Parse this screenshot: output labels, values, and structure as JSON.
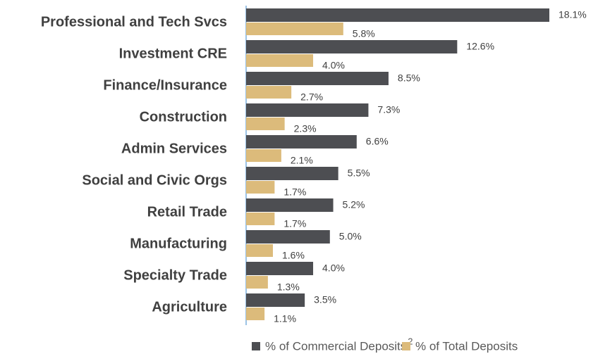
{
  "chart_data": {
    "type": "hbar",
    "categories": [
      "Professional and Tech Svcs",
      "Investment CRE",
      "Finance/Insurance",
      "Construction",
      "Admin Services",
      "Social and Civic Orgs",
      "Retail Trade",
      "Manufacturing",
      "Specialty Trade",
      "Agriculture"
    ],
    "series": [
      {
        "name": "% of Commercial Deposits",
        "footnote_mark": "2",
        "color": "#4d4e52",
        "values": [
          18.1,
          12.6,
          8.5,
          7.3,
          6.6,
          5.5,
          5.2,
          5.0,
          4.0,
          3.5
        ],
        "value_labels": [
          "18.1%",
          "12.6%",
          "8.5%",
          "7.3%",
          "6.6%",
          "5.5%",
          "5.2%",
          "5.0%",
          "4.0%",
          "3.5%"
        ]
      },
      {
        "name": "% of Total Deposits",
        "color": "#dcbb7b",
        "values": [
          5.8,
          4.0,
          2.7,
          2.3,
          2.1,
          1.7,
          1.7,
          1.6,
          1.3,
          1.1
        ],
        "value_labels": [
          "5.8%",
          "4.0%",
          "2.7%",
          "2.3%",
          "2.1%",
          "1.7%",
          "1.7%",
          "1.6%",
          "1.3%",
          "1.1%"
        ]
      }
    ]
  }
}
